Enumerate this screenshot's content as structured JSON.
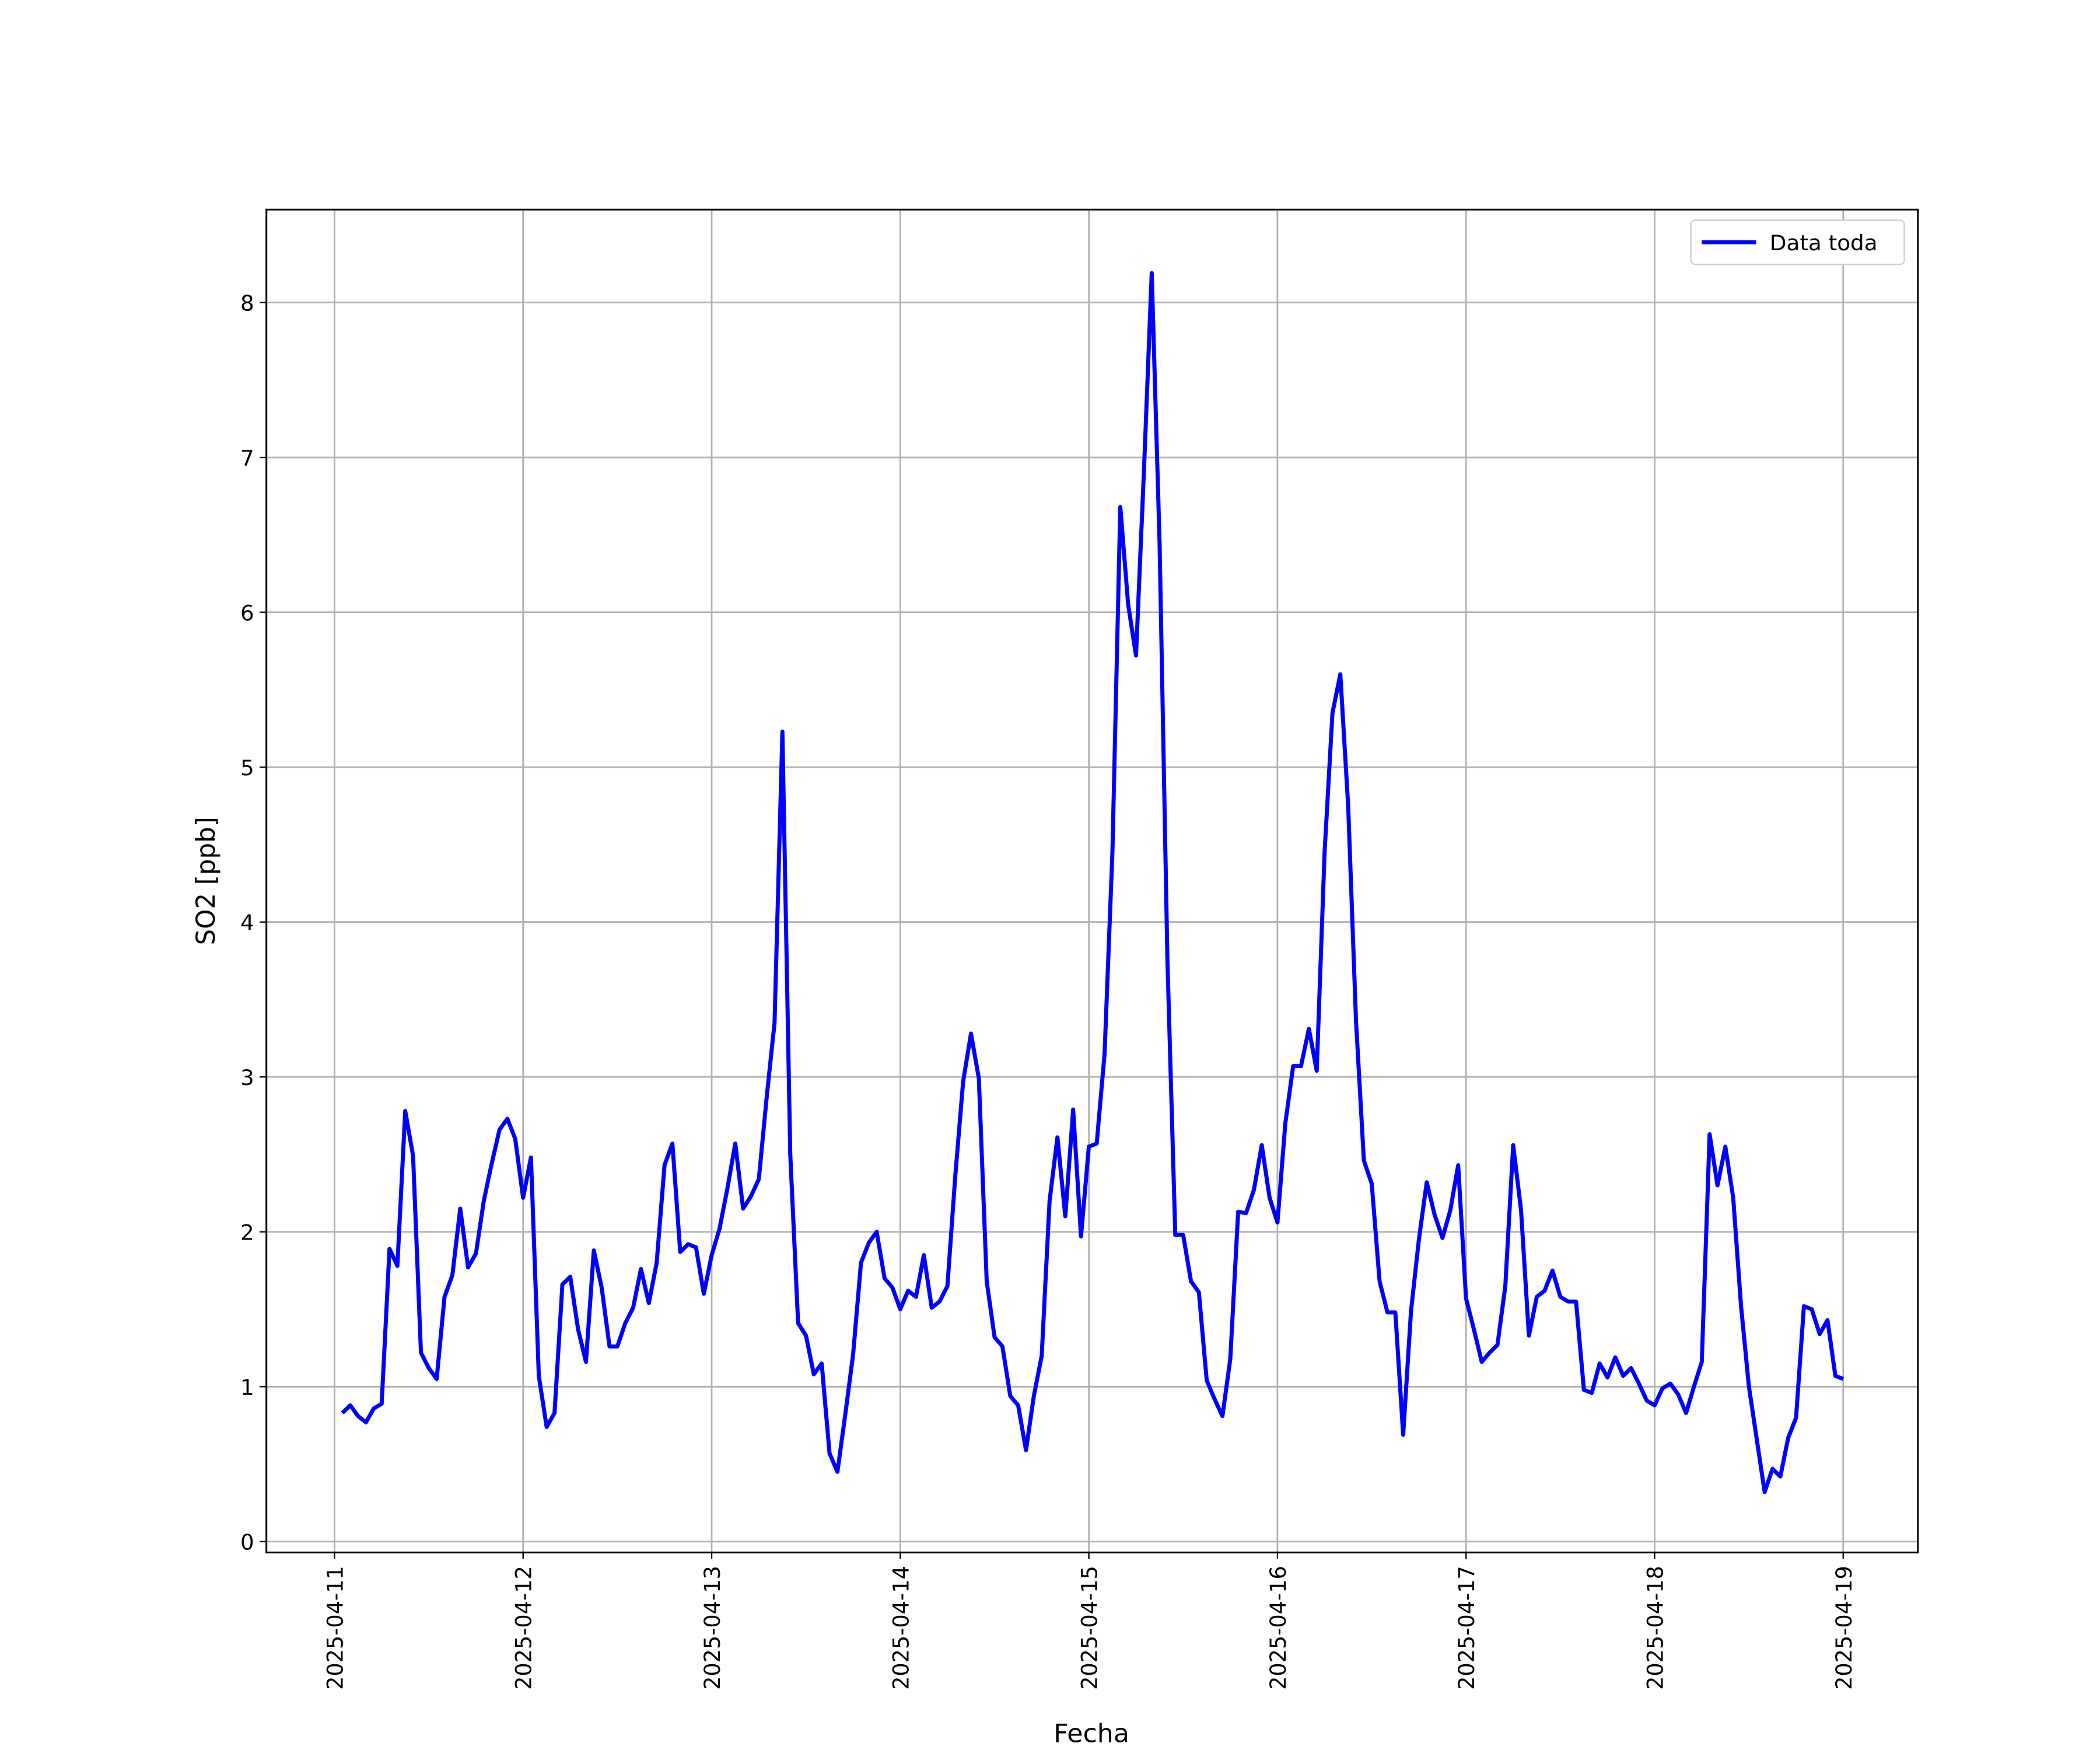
{
  "chart_data": {
    "type": "line",
    "x_label": "Fecha",
    "y_label": "SO2 [ppb]",
    "x": [
      "2025-04-11 01:00",
      "2025-04-11 02:00",
      "2025-04-11 03:00",
      "2025-04-11 04:00",
      "2025-04-11 05:00",
      "2025-04-11 06:00",
      "2025-04-11 07:00",
      "2025-04-11 08:00",
      "2025-04-11 09:00",
      "2025-04-11 10:00",
      "2025-04-11 11:00",
      "2025-04-11 12:00",
      "2025-04-11 13:00",
      "2025-04-11 14:00",
      "2025-04-11 15:00",
      "2025-04-11 16:00",
      "2025-04-11 17:00",
      "2025-04-11 18:00",
      "2025-04-11 19:00",
      "2025-04-11 20:00",
      "2025-04-11 21:00",
      "2025-04-11 22:00",
      "2025-04-11 23:00",
      "2025-04-12 00:00",
      "2025-04-12 01:00",
      "2025-04-12 02:00",
      "2025-04-12 03:00",
      "2025-04-12 04:00",
      "2025-04-12 05:00",
      "2025-04-12 06:00",
      "2025-04-12 07:00",
      "2025-04-12 08:00",
      "2025-04-12 09:00",
      "2025-04-12 10:00",
      "2025-04-12 11:00",
      "2025-04-12 12:00",
      "2025-04-12 13:00",
      "2025-04-12 14:00",
      "2025-04-12 15:00",
      "2025-04-12 16:00",
      "2025-04-12 17:00",
      "2025-04-12 18:00",
      "2025-04-12 19:00",
      "2025-04-12 20:00",
      "2025-04-12 21:00",
      "2025-04-12 22:00",
      "2025-04-12 23:00",
      "2025-04-13 00:00",
      "2025-04-13 01:00",
      "2025-04-13 02:00",
      "2025-04-13 03:00",
      "2025-04-13 04:00",
      "2025-04-13 05:00",
      "2025-04-13 06:00",
      "2025-04-13 07:00",
      "2025-04-13 08:00",
      "2025-04-13 09:00",
      "2025-04-13 10:00",
      "2025-04-13 11:00",
      "2025-04-13 12:00",
      "2025-04-13 13:00",
      "2025-04-13 14:00",
      "2025-04-13 15:00",
      "2025-04-13 16:00",
      "2025-04-13 17:00",
      "2025-04-13 18:00",
      "2025-04-13 19:00",
      "2025-04-13 20:00",
      "2025-04-13 21:00",
      "2025-04-13 22:00",
      "2025-04-13 23:00",
      "2025-04-14 00:00",
      "2025-04-14 01:00",
      "2025-04-14 02:00",
      "2025-04-14 03:00",
      "2025-04-14 04:00",
      "2025-04-14 05:00",
      "2025-04-14 06:00",
      "2025-04-14 07:00",
      "2025-04-14 08:00",
      "2025-04-14 09:00",
      "2025-04-14 10:00",
      "2025-04-14 11:00",
      "2025-04-14 12:00",
      "2025-04-14 13:00",
      "2025-04-14 14:00",
      "2025-04-14 15:00",
      "2025-04-14 16:00",
      "2025-04-14 17:00",
      "2025-04-14 18:00",
      "2025-04-14 19:00",
      "2025-04-14 20:00",
      "2025-04-14 21:00",
      "2025-04-14 22:00",
      "2025-04-14 23:00",
      "2025-04-15 00:00",
      "2025-04-15 01:00",
      "2025-04-15 02:00",
      "2025-04-15 03:00",
      "2025-04-15 04:00",
      "2025-04-15 05:00",
      "2025-04-15 06:00",
      "2025-04-15 07:00",
      "2025-04-15 08:00",
      "2025-04-15 09:00",
      "2025-04-15 10:00",
      "2025-04-15 11:00",
      "2025-04-15 12:00",
      "2025-04-15 13:00",
      "2025-04-15 14:00",
      "2025-04-15 15:00",
      "2025-04-15 16:00",
      "2025-04-15 17:00",
      "2025-04-15 18:00",
      "2025-04-15 19:00",
      "2025-04-15 20:00",
      "2025-04-15 21:00",
      "2025-04-15 22:00",
      "2025-04-15 23:00",
      "2025-04-16 00:00",
      "2025-04-16 01:00",
      "2025-04-16 02:00",
      "2025-04-16 03:00",
      "2025-04-16 04:00",
      "2025-04-16 05:00",
      "2025-04-16 06:00",
      "2025-04-16 07:00",
      "2025-04-16 08:00",
      "2025-04-16 09:00",
      "2025-04-16 10:00",
      "2025-04-16 11:00",
      "2025-04-16 12:00",
      "2025-04-16 13:00",
      "2025-04-16 14:00",
      "2025-04-16 15:00",
      "2025-04-16 16:00",
      "2025-04-16 17:00",
      "2025-04-16 18:00",
      "2025-04-16 19:00",
      "2025-04-16 20:00",
      "2025-04-16 21:00",
      "2025-04-16 22:00",
      "2025-04-16 23:00",
      "2025-04-17 00:00",
      "2025-04-17 01:00",
      "2025-04-17 02:00",
      "2025-04-17 03:00",
      "2025-04-17 04:00",
      "2025-04-17 05:00",
      "2025-04-17 06:00",
      "2025-04-17 07:00",
      "2025-04-17 08:00",
      "2025-04-17 09:00",
      "2025-04-17 10:00",
      "2025-04-17 11:00",
      "2025-04-17 12:00",
      "2025-04-17 13:00",
      "2025-04-17 14:00",
      "2025-04-17 15:00",
      "2025-04-17 16:00",
      "2025-04-17 17:00",
      "2025-04-17 18:00",
      "2025-04-17 19:00",
      "2025-04-17 20:00",
      "2025-04-17 21:00",
      "2025-04-17 22:00",
      "2025-04-17 23:00",
      "2025-04-18 00:00",
      "2025-04-18 01:00",
      "2025-04-18 02:00",
      "2025-04-18 03:00",
      "2025-04-18 04:00",
      "2025-04-18 05:00",
      "2025-04-18 06:00",
      "2025-04-18 07:00",
      "2025-04-18 08:00",
      "2025-04-18 09:00",
      "2025-04-18 10:00",
      "2025-04-18 11:00",
      "2025-04-18 12:00",
      "2025-04-18 13:00",
      "2025-04-18 14:00",
      "2025-04-18 15:00",
      "2025-04-18 16:00",
      "2025-04-18 17:00",
      "2025-04-18 18:00",
      "2025-04-18 19:00",
      "2025-04-18 20:00",
      "2025-04-18 21:00",
      "2025-04-18 22:00",
      "2025-04-18 23:00",
      "2025-04-19 00:00"
    ],
    "series": [
      {
        "name": "Data toda",
        "color": "#0000ff",
        "values": [
          0.83,
          0.88,
          0.81,
          0.77,
          0.86,
          0.89,
          1.89,
          1.78,
          2.78,
          2.49,
          1.22,
          1.12,
          1.05,
          1.58,
          1.72,
          2.15,
          1.77,
          1.86,
          2.2,
          2.44,
          2.66,
          2.73,
          2.6,
          2.22,
          2.48,
          1.07,
          0.74,
          0.83,
          1.66,
          1.71,
          1.37,
          1.16,
          1.88,
          1.64,
          1.26,
          1.26,
          1.41,
          1.51,
          1.76,
          1.54,
          1.8,
          2.43,
          2.57,
          1.87,
          1.92,
          1.9,
          1.6,
          1.85,
          2.02,
          2.28,
          2.57,
          2.15,
          2.23,
          2.34,
          2.87,
          3.35,
          5.23,
          2.5,
          1.41,
          1.33,
          1.08,
          1.15,
          0.57,
          0.45,
          0.82,
          1.21,
          1.8,
          1.93,
          2.0,
          1.7,
          1.64,
          1.5,
          1.62,
          1.58,
          1.85,
          1.51,
          1.55,
          1.65,
          2.36,
          2.97,
          3.28,
          2.99,
          1.68,
          1.32,
          1.26,
          0.94,
          0.88,
          0.59,
          0.94,
          1.2,
          2.2,
          2.61,
          2.1,
          2.79,
          1.97,
          2.55,
          2.57,
          3.15,
          4.45,
          6.68,
          6.05,
          5.72,
          6.9,
          8.19,
          6.45,
          3.75,
          1.98,
          1.98,
          1.68,
          1.61,
          1.04,
          0.92,
          0.81,
          1.18,
          2.13,
          2.12,
          2.27,
          2.56,
          2.22,
          2.06,
          2.7,
          3.07,
          3.07,
          3.31,
          3.04,
          4.45,
          5.35,
          5.6,
          4.75,
          3.36,
          2.46,
          2.31,
          1.68,
          1.48,
          1.48,
          0.69,
          1.49,
          1.95,
          2.32,
          2.11,
          1.96,
          2.14,
          2.43,
          1.57,
          1.37,
          1.16,
          1.22,
          1.27,
          1.65,
          2.56,
          2.14,
          1.33,
          1.58,
          1.62,
          1.75,
          1.58,
          1.55,
          1.55,
          0.98,
          0.96,
          1.15,
          1.06,
          1.19,
          1.07,
          1.12,
          1.02,
          0.91,
          0.88,
          0.99,
          1.02,
          0.95,
          0.83,
          1.0,
          1.16,
          2.63,
          2.3,
          2.55,
          2.22,
          1.52,
          1.0,
          0.66,
          0.32,
          0.47,
          0.42,
          0.67,
          0.8,
          1.52,
          1.5,
          1.34,
          1.43,
          1.07,
          1.05
        ]
      }
    ],
    "xlim": [
      "2025-04-10 15:20",
      "2025-04-19 09:30"
    ],
    "xticks": [
      "2025-04-11",
      "2025-04-12",
      "2025-04-13",
      "2025-04-14",
      "2025-04-15",
      "2025-04-16",
      "2025-04-17",
      "2025-04-18",
      "2025-04-19"
    ],
    "ylim": [
      -0.07,
      8.6
    ],
    "yticks": [
      0,
      1,
      2,
      3,
      4,
      5,
      6,
      7,
      8
    ],
    "grid": true,
    "legend": "upper right"
  }
}
